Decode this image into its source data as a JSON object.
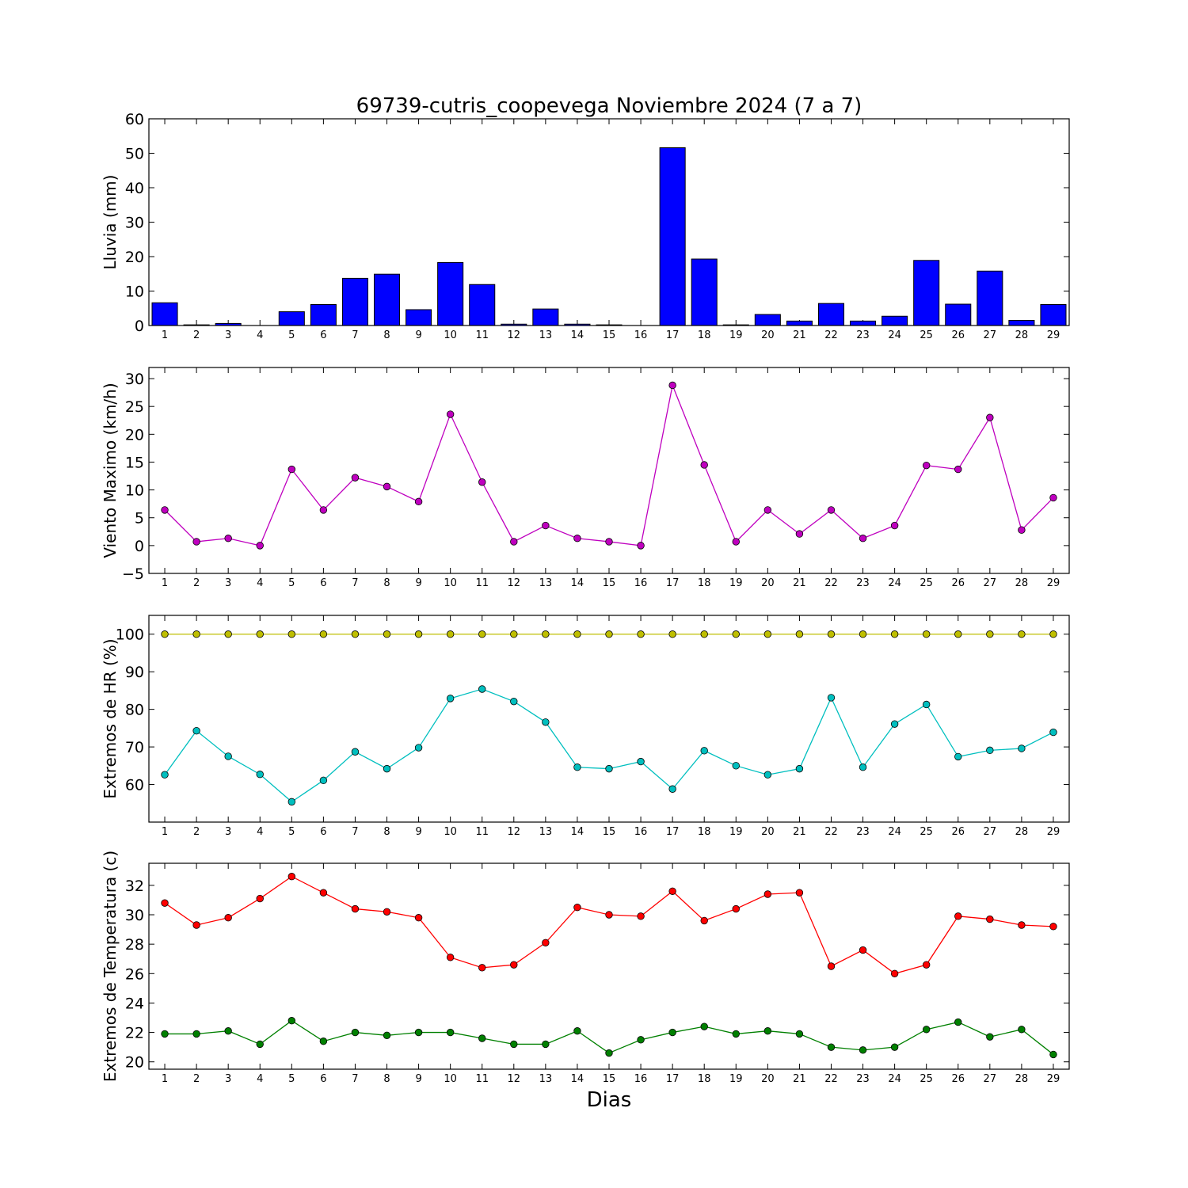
{
  "title": "69739-cutris_coopevega Noviembre 2024  (7 a 7)",
  "xlabel": "Dias",
  "chart_data": [
    {
      "type": "bar",
      "ylabel": "Lluvia (mm)",
      "ylim": [
        0,
        60
      ],
      "yticks": [
        0,
        10,
        20,
        30,
        40,
        50,
        60
      ],
      "x": [
        1,
        2,
        3,
        4,
        5,
        6,
        7,
        8,
        9,
        10,
        11,
        12,
        13,
        14,
        15,
        16,
        17,
        18,
        19,
        20,
        21,
        22,
        23,
        24,
        25,
        26,
        27,
        28,
        29
      ],
      "series": [
        {
          "color": "#0000ff",
          "values": [
            6.6,
            0.2,
            0.6,
            0,
            4.0,
            6.1,
            13.7,
            14.9,
            4.6,
            18.3,
            11.9,
            0.4,
            4.8,
            0.4,
            0.2,
            0,
            51.6,
            19.3,
            0.2,
            3.2,
            1.3,
            6.4,
            1.3,
            2.7,
            18.9,
            6.2,
            15.8,
            1.5,
            6.1
          ]
        }
      ]
    },
    {
      "type": "line",
      "ylabel": "Viento Maximo (km/h)",
      "ylim": [
        -5,
        32
      ],
      "yticks": [
        -5,
        0,
        5,
        10,
        15,
        20,
        25,
        30
      ],
      "x": [
        1,
        2,
        3,
        4,
        5,
        6,
        7,
        8,
        9,
        10,
        11,
        12,
        13,
        14,
        15,
        16,
        17,
        18,
        19,
        20,
        21,
        22,
        23,
        24,
        25,
        26,
        27,
        28,
        29
      ],
      "series": [
        {
          "color": "#bf00bf",
          "values": [
            6.4,
            0.7,
            1.3,
            0,
            13.7,
            6.4,
            12.2,
            10.6,
            7.9,
            23.6,
            11.4,
            0.7,
            3.6,
            1.3,
            0.7,
            0,
            28.8,
            14.5,
            0.7,
            6.4,
            2.1,
            6.4,
            1.3,
            3.6,
            14.4,
            13.7,
            23.0,
            2.8,
            8.6
          ]
        }
      ]
    },
    {
      "type": "line",
      "ylabel": "Extremos de HR (%)",
      "ylim": [
        50,
        105
      ],
      "yticks": [
        60,
        70,
        80,
        90,
        100
      ],
      "x": [
        1,
        2,
        3,
        4,
        5,
        6,
        7,
        8,
        9,
        10,
        11,
        12,
        13,
        14,
        15,
        16,
        17,
        18,
        19,
        20,
        21,
        22,
        23,
        24,
        25,
        26,
        27,
        28,
        29
      ],
      "series": [
        {
          "color": "#bfbf00",
          "values": [
            100,
            100,
            100,
            100,
            100,
            100,
            100,
            100,
            100,
            100,
            100,
            100,
            100,
            100,
            100,
            100,
            100,
            100,
            100,
            100,
            100,
            100,
            100,
            100,
            100,
            100,
            100,
            100,
            100
          ]
        },
        {
          "color": "#00bfbf",
          "values": [
            62.6,
            74.3,
            67.5,
            62.7,
            55.4,
            61.1,
            68.7,
            64.2,
            69.8,
            82.9,
            85.4,
            82.1,
            76.6,
            64.6,
            64.2,
            66.1,
            58.8,
            69.0,
            65.0,
            62.6,
            64.2,
            83.1,
            64.6,
            76.1,
            81.3,
            67.4,
            69.1,
            69.6,
            73.9
          ]
        }
      ]
    },
    {
      "type": "line",
      "ylabel": "Extremos de Temperatura (c)",
      "ylim": [
        19.5,
        33.5
      ],
      "yticks": [
        20,
        22,
        24,
        26,
        28,
        30,
        32
      ],
      "x": [
        1,
        2,
        3,
        4,
        5,
        6,
        7,
        8,
        9,
        10,
        11,
        12,
        13,
        14,
        15,
        16,
        17,
        18,
        19,
        20,
        21,
        22,
        23,
        24,
        25,
        26,
        27,
        28,
        29
      ],
      "series": [
        {
          "color": "#ff0000",
          "values": [
            30.8,
            29.3,
            29.8,
            31.1,
            32.6,
            31.5,
            30.4,
            30.2,
            29.8,
            27.1,
            26.4,
            26.6,
            28.1,
            30.5,
            30.0,
            29.9,
            31.6,
            29.6,
            30.4,
            31.4,
            31.5,
            26.5,
            27.6,
            26.0,
            26.6,
            29.9,
            29.7,
            29.3,
            29.2
          ]
        },
        {
          "color": "#008000",
          "values": [
            21.9,
            21.9,
            22.1,
            21.2,
            22.8,
            21.4,
            22.0,
            21.8,
            22.0,
            22.0,
            21.6,
            21.2,
            21.2,
            22.1,
            20.6,
            21.5,
            22.0,
            22.4,
            21.9,
            22.1,
            21.9,
            21.0,
            20.8,
            21.0,
            22.2,
            22.7,
            21.7,
            22.2,
            20.5
          ]
        }
      ]
    }
  ]
}
